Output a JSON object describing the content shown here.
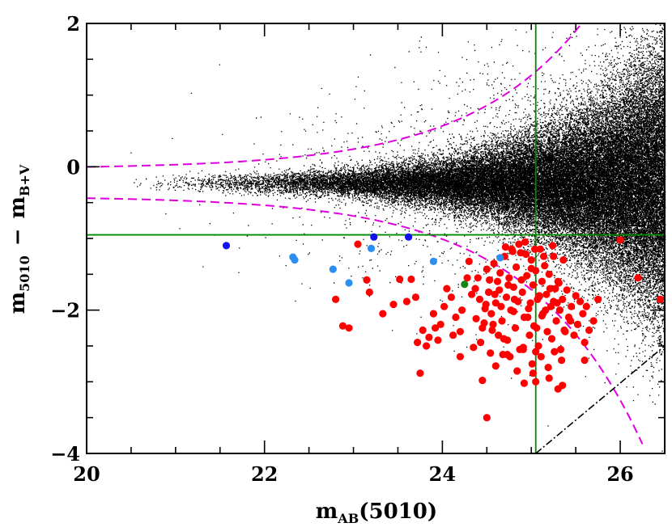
{
  "chart_data": {
    "type": "scatter",
    "xlabel": {
      "main": "m",
      "sub": "AB",
      "tail": "(5010)"
    },
    "ylabel": {
      "a": "m",
      "a_sub": "5010",
      "dash": "−",
      "b": "m",
      "b_sub": "B+V"
    },
    "xlim": [
      20,
      26.5
    ],
    "ylim": [
      -4,
      2
    ],
    "xticks": [
      20,
      22,
      24,
      26
    ],
    "xtick_labels": [
      "20",
      "22",
      "24",
      "26"
    ],
    "yticks": [
      -4,
      -2,
      0,
      2
    ],
    "ytick_labels": [
      "−4",
      "−2",
      "0",
      "2"
    ],
    "grid": false,
    "colors": {
      "field": "#000000",
      "red": "#ff0000",
      "blue": "#1111ee",
      "lightblue": "#2a8ff0",
      "green": "#118811",
      "lines": "#008800",
      "envelope": "#dd00dd",
      "limit": "#000000"
    },
    "reference_lines": {
      "vertical_x": 25.05,
      "horizontal_y": -0.95
    },
    "envelope_curve": {
      "center_y": -0.22,
      "base_width": 0.08,
      "scale": 0.011,
      "rate": 0.78,
      "x_ref": 20
    },
    "limit_line": {
      "from": [
        25.05,
        -4.0
      ],
      "to": [
        26.5,
        -2.5
      ]
    },
    "background_field": {
      "description_free": true,
      "n": 55000,
      "seed": 7
    },
    "series": [
      {
        "name": "",
        "color_key": "blue",
        "x": [
          21.57,
          23.23,
          23.62
        ],
        "y": [
          -1.1,
          -0.98,
          -0.98
        ]
      },
      {
        "name": "",
        "color_key": "lightblue",
        "x": [
          22.32,
          22.34,
          22.77,
          22.95,
          23.2,
          23.9,
          24.65
        ],
        "y": [
          -1.26,
          -1.3,
          -1.43,
          -1.62,
          -1.14,
          -1.32,
          -1.27
        ]
      },
      {
        "name": "",
        "color_key": "green",
        "x": [
          24.25
        ],
        "y": [
          -1.64
        ]
      },
      {
        "name": "",
        "color_key": "red",
        "x": [
          23.05,
          23.18,
          23.33,
          23.45,
          23.52,
          23.65,
          23.7,
          23.72,
          23.78,
          23.82,
          23.85,
          23.9,
          23.92,
          23.95,
          23.98,
          24.02,
          24.05,
          24.1,
          24.12,
          24.15,
          24.2,
          24.22,
          24.28,
          24.3,
          24.33,
          24.38,
          24.4,
          24.42,
          24.45,
          24.48,
          24.5,
          24.52,
          24.55,
          24.58,
          24.6,
          24.62,
          24.63,
          24.65,
          24.67,
          24.7,
          24.72,
          24.73,
          24.75,
          24.77,
          24.78,
          24.8,
          24.82,
          24.83,
          24.85,
          24.87,
          24.88,
          24.9,
          24.92,
          24.93,
          24.95,
          24.97,
          24.98,
          25.0,
          25.02,
          25.03,
          25.05,
          25.07,
          25.08,
          25.1,
          25.12,
          25.13,
          25.15,
          25.17,
          25.18,
          25.2,
          25.22,
          25.23,
          25.25,
          25.27,
          25.28,
          25.3,
          25.32,
          25.33,
          25.35,
          25.38,
          25.4,
          25.42,
          25.45,
          25.48,
          25.5,
          25.52,
          25.55,
          25.58,
          25.6,
          25.62,
          25.65,
          25.7,
          25.75,
          24.35,
          24.57,
          24.68,
          24.43,
          24.6,
          24.76,
          24.84,
          24.91,
          25.01,
          25.11,
          25.19,
          25.26,
          25.34,
          24.71,
          24.79,
          24.86,
          24.94,
          25.04,
          25.14,
          25.24,
          25.36,
          24.53,
          24.64,
          24.74,
          24.89,
          24.99,
          25.09,
          25.21,
          25.31,
          24.47,
          24.56,
          24.66,
          24.81,
          24.96,
          25.06,
          25.16,
          25.29,
          25.44,
          24.37,
          24.49,
          24.59,
          24.69,
          24.8,
          25.0,
          25.12,
          25.25,
          25.37,
          24.54,
          24.73,
          24.91,
          25.05,
          25.2,
          25.35,
          23.15,
          22.8,
          22.88,
          22.95,
          23.6,
          23.75,
          24.2,
          24.45,
          24.5,
          24.92,
          25.02,
          25.05,
          25.3,
          25.6,
          26.0,
          26.2,
          26.45
        ],
        "y": [
          -1.08,
          -1.75,
          -2.05,
          -1.92,
          -1.57,
          -1.57,
          -1.82,
          -2.45,
          -2.28,
          -2.5,
          -2.38,
          -2.05,
          -2.25,
          -2.42,
          -2.2,
          -1.95,
          -1.7,
          -1.82,
          -2.35,
          -2.1,
          -2.3,
          -2.0,
          -1.55,
          -1.32,
          -1.78,
          -2.12,
          -1.55,
          -1.85,
          -2.25,
          -1.98,
          -1.43,
          -1.75,
          -2.05,
          -1.35,
          -1.9,
          -1.6,
          -2.35,
          -1.48,
          -2.15,
          -1.25,
          -1.82,
          -2.42,
          -1.55,
          -2.0,
          -1.15,
          -1.68,
          -2.25,
          -1.4,
          -1.88,
          -2.55,
          -1.2,
          -1.75,
          -2.1,
          -1.05,
          -1.52,
          -1.98,
          -2.35,
          -1.3,
          -1.65,
          -2.22,
          -1.45,
          -1.85,
          -2.5,
          -1.15,
          -1.6,
          -2.05,
          -1.38,
          -1.78,
          -2.3,
          -1.5,
          -1.95,
          -2.4,
          -1.25,
          -1.7,
          -2.15,
          -1.6,
          -2.0,
          -2.55,
          -1.85,
          -2.3,
          -1.72,
          -2.1,
          -1.95,
          -2.35,
          -1.8,
          -2.2,
          -1.88,
          -2.05,
          -2.45,
          -1.95,
          -2.28,
          -2.15,
          -1.85,
          -2.52,
          -2.2,
          -2.62,
          -2.45,
          -2.78,
          -2.65,
          -2.85,
          -2.55,
          -2.75,
          -2.65,
          -2.8,
          -2.58,
          -2.7,
          -1.12,
          -1.18,
          -1.08,
          -1.22,
          -1.15,
          -1.25,
          -1.1,
          -1.3,
          -1.58,
          -1.72,
          -1.65,
          -1.58,
          -1.9,
          -1.8,
          -1.7,
          -1.62,
          -2.18,
          -2.28,
          -1.95,
          -1.85,
          -2.1,
          -2.25,
          -2.0,
          -1.9,
          -2.15,
          -1.7,
          -1.92,
          -1.78,
          -2.4,
          -2.02,
          -1.42,
          -2.08,
          -1.88,
          -2.28,
          -2.6,
          -2.62,
          -2.52,
          -2.58,
          -2.95,
          -3.05,
          -1.58,
          -1.85,
          -2.22,
          -2.25,
          -1.88,
          -2.88,
          -2.65,
          -2.98,
          -3.5,
          -3.02,
          -2.88,
          -3.0,
          -3.1,
          -2.7,
          -1.02,
          -1.55,
          -1.85
        ]
      }
    ]
  }
}
